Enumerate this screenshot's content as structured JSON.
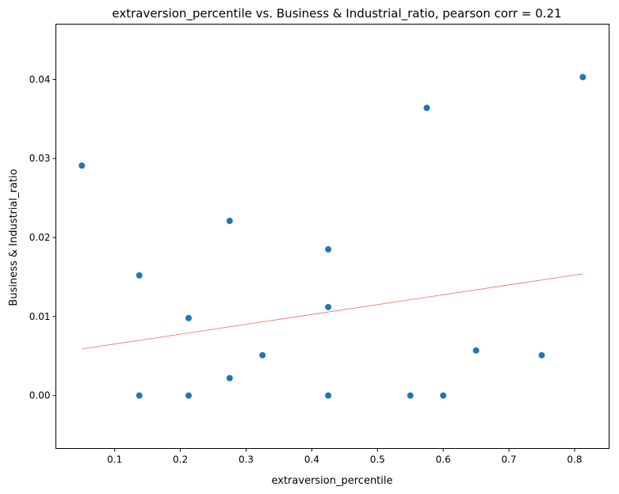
{
  "chart_data": {
    "type": "scatter",
    "title": "extraversion_percentile vs. Business & Industrial_ratio, pearson corr = 0.21",
    "xlabel": "extraversion_percentile",
    "ylabel": "Business & Industrial_ratio",
    "xlim": [
      0.0105,
      0.8525
    ],
    "ylim": [
      -0.0067,
      0.047
    ],
    "xticks": [
      0.1,
      0.2,
      0.3,
      0.4,
      0.5,
      0.6,
      0.7,
      0.8
    ],
    "xtick_labels": [
      "0.1",
      "0.2",
      "0.3",
      "0.4",
      "0.5",
      "0.6",
      "0.7",
      "0.8"
    ],
    "yticks": [
      0.0,
      0.01,
      0.02,
      0.03,
      0.04
    ],
    "ytick_labels": [
      "0.00",
      "0.01",
      "0.02",
      "0.03",
      "0.04"
    ],
    "grid": false,
    "point_color": "#1f77b4",
    "trendline_color": "#e8534a",
    "points": [
      {
        "x": 0.05,
        "y": 0.0291
      },
      {
        "x": 0.1375,
        "y": 0.0152
      },
      {
        "x": 0.1375,
        "y": 0.0
      },
      {
        "x": 0.2125,
        "y": 0.0098
      },
      {
        "x": 0.2125,
        "y": 0.0
      },
      {
        "x": 0.275,
        "y": 0.0221
      },
      {
        "x": 0.275,
        "y": 0.0022
      },
      {
        "x": 0.325,
        "y": 0.0051
      },
      {
        "x": 0.425,
        "y": 0.0185
      },
      {
        "x": 0.425,
        "y": 0.0112
      },
      {
        "x": 0.425,
        "y": 0.0
      },
      {
        "x": 0.55,
        "y": 0.0
      },
      {
        "x": 0.575,
        "y": 0.0364
      },
      {
        "x": 0.6,
        "y": 0.0
      },
      {
        "x": 0.65,
        "y": 0.0057
      },
      {
        "x": 0.75,
        "y": 0.0051
      },
      {
        "x": 0.8125,
        "y": 0.0403
      }
    ],
    "trendline": {
      "x": [
        0.05,
        0.8125
      ],
      "y": [
        0.0059,
        0.0154
      ]
    }
  }
}
